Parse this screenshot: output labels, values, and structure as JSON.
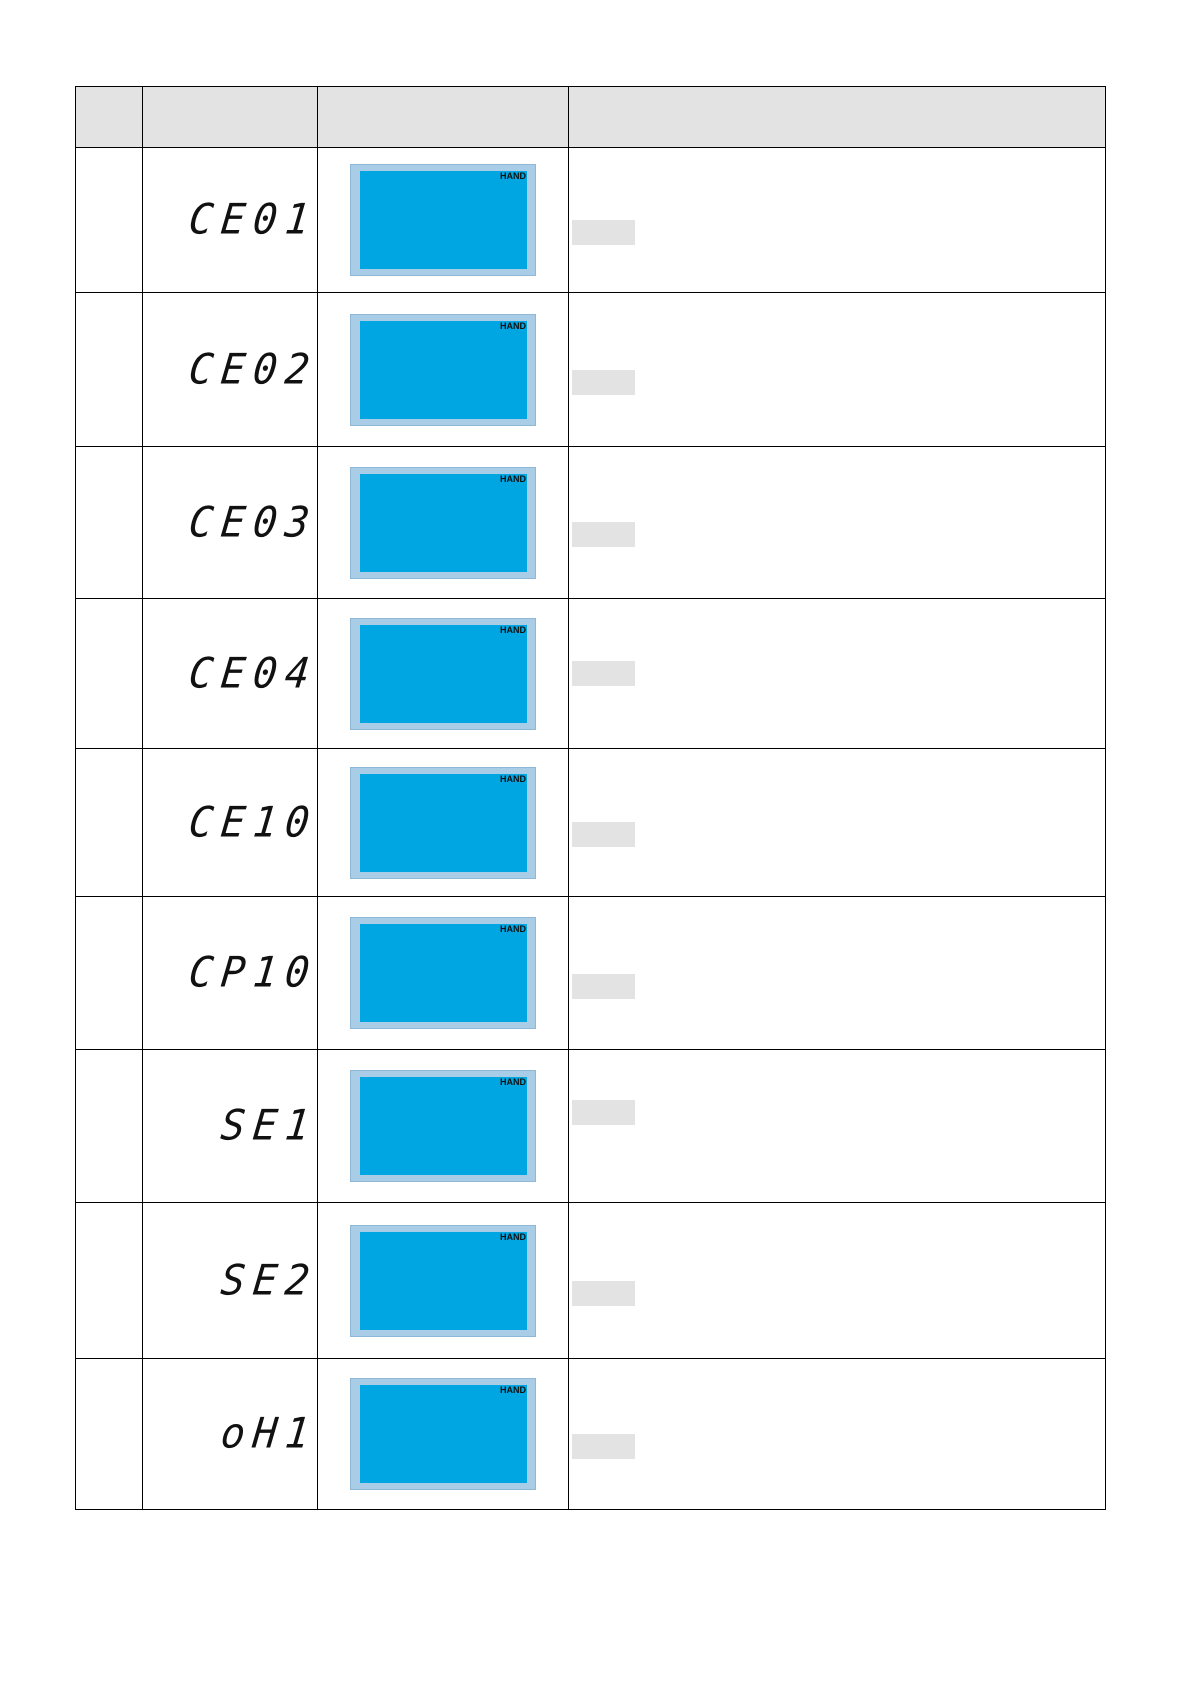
{
  "header": {
    "col1": "",
    "col2": "",
    "col3": "",
    "col4": ""
  },
  "rows": [
    {
      "code": "CE01",
      "lcd_label": "HAND"
    },
    {
      "code": "CE02",
      "lcd_label": "HAND"
    },
    {
      "code": "CE03",
      "lcd_label": "HAND"
    },
    {
      "code": "CE04",
      "lcd_label": "HAND"
    },
    {
      "code": "CE10",
      "lcd_label": "HAND"
    },
    {
      "code": "CP10",
      "lcd_label": "HAND"
    },
    {
      "code": "SE1",
      "lcd_label": "HAND"
    },
    {
      "code": "SE2",
      "lcd_label": "HAND"
    },
    {
      "code": "oH1",
      "lcd_label": "HAND"
    }
  ],
  "colors": {
    "header_bg": "#e3e3e3",
    "lcd_screen": "#00a6e2",
    "lcd_frame": "#a9cde6"
  }
}
